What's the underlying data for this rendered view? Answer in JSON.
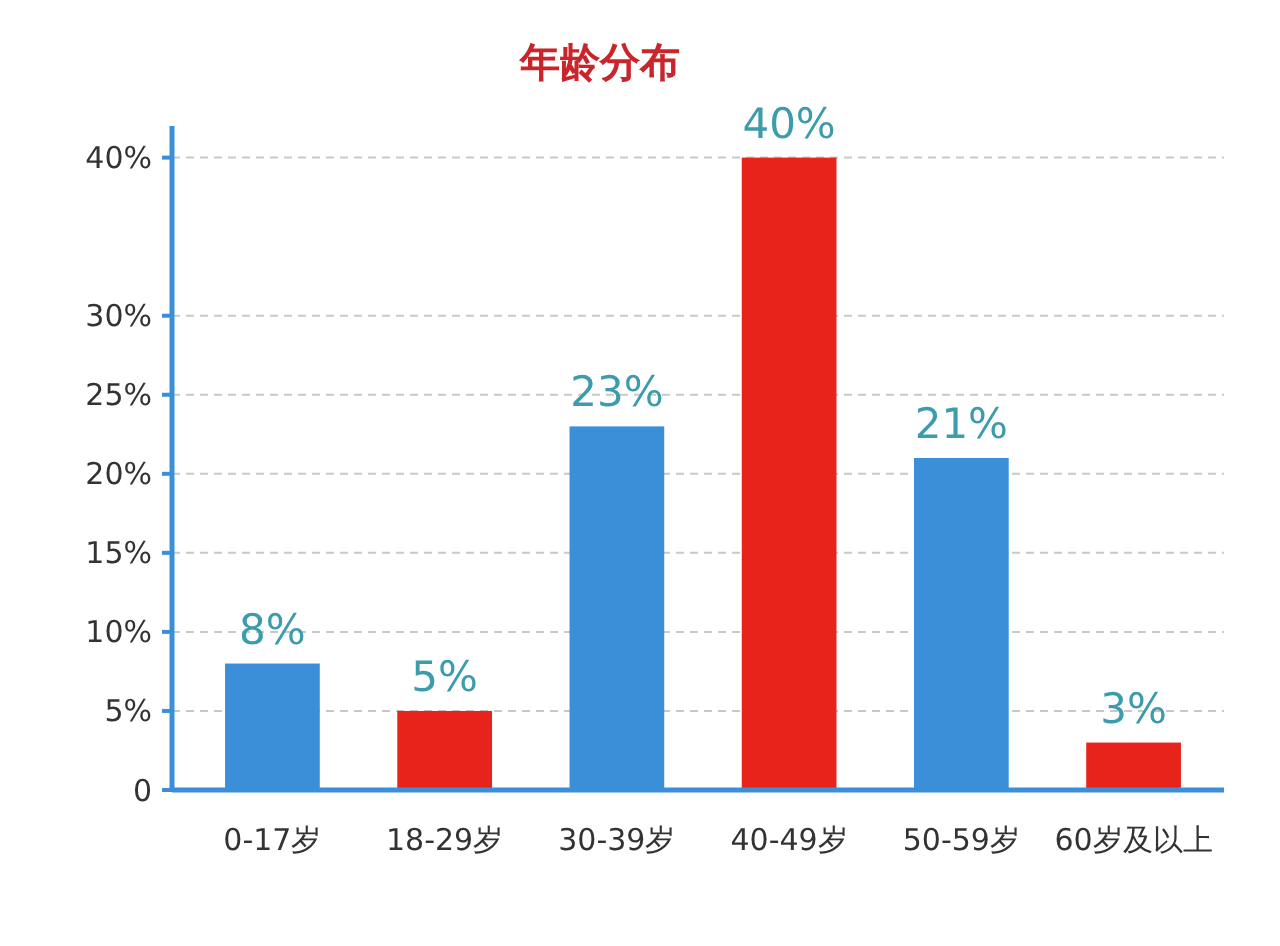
{
  "chart_data": {
    "type": "bar",
    "title": "年龄分布",
    "categories": [
      "0-17岁",
      "18-29岁",
      "30-39岁",
      "40-49岁",
      "50-59岁",
      "60岁及以上"
    ],
    "values": [
      8,
      5,
      23,
      40,
      21,
      3
    ],
    "colors": [
      "#3b8fd9",
      "#e8231c",
      "#3b8fd9",
      "#e8231c",
      "#3b8fd9",
      "#e8231c"
    ],
    "value_labels": [
      "8%",
      "5%",
      "23%",
      "40%",
      "21%",
      "3%"
    ],
    "ylim": [
      0,
      42
    ],
    "yticks": [
      0,
      {
        "value": 5,
        "label": "5%"
      },
      {
        "value": 10,
        "label": "10%"
      },
      {
        "value": 15,
        "label": "15%"
      },
      {
        "value": 20,
        "label": "20%"
      },
      {
        "value": 25,
        "label": "25%"
      },
      {
        "value": 30,
        "label": "30%"
      },
      {
        "value": 40,
        "label": "40%"
      }
    ],
    "grid": "y"
  }
}
